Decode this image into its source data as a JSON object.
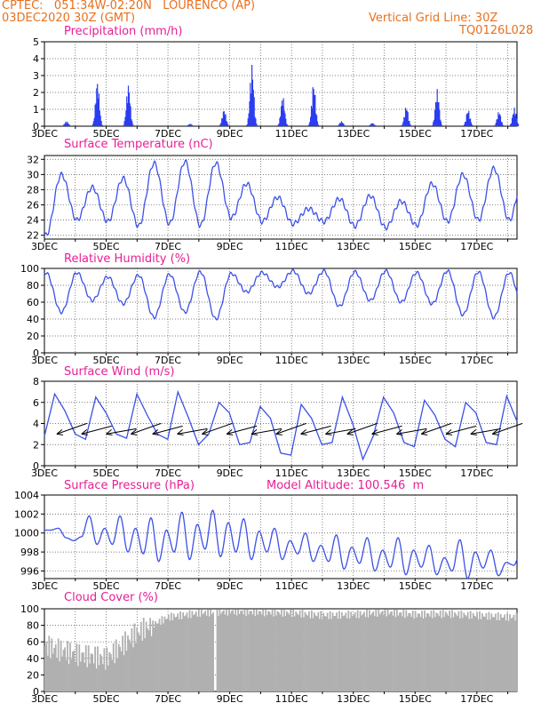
{
  "header": {
    "station": "CPTEC:   051:34W-02:20N   LOURENCO (AP)",
    "start": "03DEC2020 30Z (GMT)",
    "grid_note": "Vertical Grid Line: 30Z",
    "model": "TQ0126L028"
  },
  "x_ticks": [
    "3DEC",
    "5DEC",
    "7DEC",
    "9DEC",
    "11DEC",
    "13DEC",
    "15DEC",
    "17DEC"
  ],
  "colors": {
    "line": "#3c50e6",
    "bar": "#2a3df0",
    "cloud": "#b0b0b0",
    "title": "#e81e96",
    "header": "#e8701e"
  },
  "chart_data": [
    {
      "type": "bar",
      "title": "Precipitation (mm/h)",
      "ylim": [
        0,
        5
      ],
      "yticks": [
        0,
        1,
        2,
        3,
        4,
        5
      ],
      "x_range_days": [
        0,
        15.3
      ],
      "bursts": [
        {
          "day": 0.7,
          "peak": 0.3
        },
        {
          "day": 1.7,
          "peak": 2.7
        },
        {
          "day": 2.7,
          "peak": 2.5
        },
        {
          "day": 4.7,
          "peak": 0.15
        },
        {
          "day": 5.8,
          "peak": 1.0
        },
        {
          "day": 6.7,
          "peak": 3.7
        },
        {
          "day": 7.7,
          "peak": 1.8
        },
        {
          "day": 8.7,
          "peak": 2.6
        },
        {
          "day": 9.6,
          "peak": 0.3
        },
        {
          "day": 10.6,
          "peak": 0.2
        },
        {
          "day": 11.7,
          "peak": 1.2
        },
        {
          "day": 12.7,
          "peak": 2.2
        },
        {
          "day": 13.7,
          "peak": 1.0
        },
        {
          "day": 14.7,
          "peak": 0.9
        },
        {
          "day": 15.2,
          "peak": 1.1
        }
      ]
    },
    {
      "type": "line",
      "title": "Surface Temperature (nC)",
      "ylim": [
        21.5,
        32.5
      ],
      "yticks": [
        22,
        24,
        26,
        28,
        30,
        32
      ],
      "daily_max": [
        30.0,
        28.3,
        29.5,
        31.5,
        31.7,
        31.5,
        28.8,
        27.0,
        25.5,
        26.8,
        27.2,
        26.5,
        28.8,
        30.0,
        30.8,
        30.8
      ],
      "daily_min": [
        22.0,
        24.0,
        23.8,
        23.2,
        23.5,
        23.3,
        24.3,
        23.8,
        23.5,
        23.8,
        23.2,
        23.0,
        23.3,
        23.8,
        24.0,
        24.0,
        24.5
      ]
    },
    {
      "type": "line",
      "title": "Relative Humidity (%)",
      "ylim": [
        0,
        100
      ],
      "yticks": [
        0,
        20,
        40,
        60,
        80,
        100
      ],
      "daily_max": [
        95,
        95,
        90,
        92,
        93,
        96,
        94,
        95,
        97,
        97,
        96,
        97,
        95,
        97,
        96,
        95,
        98
      ],
      "daily_min": [
        48,
        62,
        58,
        42,
        48,
        40,
        72,
        78,
        70,
        55,
        62,
        60,
        58,
        45,
        42,
        43
      ]
    },
    {
      "type": "line",
      "title": "Surface Wind (m/s)",
      "ylim": [
        0,
        8
      ],
      "yticks": [
        0,
        2,
        4,
        6,
        8
      ],
      "speed": [
        2.8,
        6.8,
        5.2,
        3.0,
        2.5,
        6.5,
        5.0,
        3.0,
        2.6,
        6.8,
        4.8,
        3.0,
        2.5,
        7.0,
        4.6,
        2.0,
        3.0,
        6.0,
        5.0,
        2.0,
        2.2,
        5.6,
        4.5,
        1.2,
        1.0,
        5.8,
        4.5,
        2.0,
        2.2,
        6.5,
        4.0,
        0.6,
        2.8,
        6.5,
        5.0,
        2.2,
        1.8,
        6.2,
        4.8,
        2.5,
        1.8,
        6.0,
        5.0,
        2.2,
        2.0,
        6.6,
        4.2
      ],
      "arrow_days": [
        0.4,
        1.2,
        2.0,
        2.8,
        3.5,
        4.3,
        5.1,
        5.9,
        6.7,
        7.5,
        8.3,
        9.1,
        9.8,
        10.6,
        11.4,
        12.2,
        13.0,
        13.8,
        14.5
      ]
    },
    {
      "type": "line",
      "title": "Surface Pressure (hPa)",
      "annotation": "Model Altitude: 100.546  m",
      "ylim": [
        995.2,
        1004
      ],
      "yticks": [
        996,
        998,
        1000,
        1002,
        1004
      ],
      "daily_max": [
        1000.5,
        1001.8,
        1001.8,
        1001.6,
        1002.2,
        1002.4,
        1001.5,
        1000.5,
        1000.0,
        999.8,
        999.5,
        999.5,
        998.7,
        999.3,
        998.2,
        998.5
      ],
      "daily_min": [
        999.5,
        998.8,
        998.0,
        997.0,
        997.2,
        997.5,
        997.2,
        997.2,
        997.0,
        996.2,
        996.0,
        995.6,
        995.6,
        995.2,
        995.5,
        995.8
      ]
    },
    {
      "type": "bar",
      "title": "Cloud Cover (%)",
      "ylim": [
        0,
        100
      ],
      "yticks": [
        0,
        20,
        40,
        60,
        80,
        100
      ],
      "daily_level": [
        55,
        45,
        40,
        72,
        90,
        95,
        97,
        96,
        95,
        92,
        93,
        96,
        93,
        94,
        92,
        90
      ],
      "clear_gap_day": 5.5
    }
  ]
}
